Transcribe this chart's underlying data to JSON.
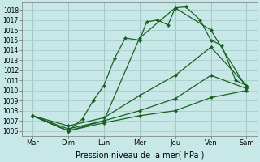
{
  "xlabel": "Pression niveau de la mer( hPa )",
  "background_color": "#c8e8e8",
  "grid_color": "#a8cccc",
  "line_color": "#1a6020",
  "ylim": [
    1005.5,
    1018.7
  ],
  "yticks": [
    1006,
    1007,
    1008,
    1009,
    1010,
    1011,
    1012,
    1013,
    1014,
    1015,
    1016,
    1017,
    1018
  ],
  "x_labels": [
    "Mar",
    "Dim",
    "Lun",
    "Mer",
    "Jeu",
    "Ven",
    "Sam"
  ],
  "lines": [
    {
      "x": [
        0,
        1,
        1.4,
        1.7,
        2.0,
        2.3,
        2.6,
        3.0,
        3.2,
        3.5,
        3.8,
        4.0,
        4.3,
        4.7,
        5.0,
        5.3,
        5.7,
        6.0
      ],
      "y": [
        1007.5,
        1006.0,
        1007.2,
        1009.0,
        1010.5,
        1013.2,
        1015.2,
        1015.0,
        1016.8,
        1017.0,
        1016.5,
        1018.2,
        1018.3,
        1017.0,
        1015.0,
        1014.5,
        1011.0,
        1010.5
      ],
      "linestyle": "-",
      "linewidth": 0.9,
      "markersize": 2.2
    },
    {
      "x": [
        0,
        1,
        2,
        3,
        4,
        5,
        6
      ],
      "y": [
        1007.5,
        1006.2,
        1007.0,
        1015.2,
        1018.2,
        1016.0,
        1010.3
      ],
      "linestyle": "-",
      "linewidth": 0.9,
      "markersize": 2.2
    },
    {
      "x": [
        0,
        1,
        2,
        3,
        4,
        5,
        6
      ],
      "y": [
        1007.5,
        1006.5,
        1007.3,
        1009.5,
        1011.5,
        1014.3,
        1010.5
      ],
      "linestyle": "-",
      "linewidth": 0.9,
      "markersize": 2.2
    },
    {
      "x": [
        0,
        1,
        2,
        3,
        4,
        5,
        6
      ],
      "y": [
        1007.5,
        1006.0,
        1007.0,
        1008.0,
        1009.2,
        1011.5,
        1010.2
      ],
      "linestyle": "-",
      "linewidth": 0.9,
      "markersize": 2.2
    },
    {
      "x": [
        0,
        1,
        2,
        3,
        4,
        5,
        6
      ],
      "y": [
        1007.5,
        1006.0,
        1006.8,
        1007.5,
        1008.0,
        1009.3,
        1010.0
      ],
      "linestyle": "-",
      "linewidth": 0.9,
      "markersize": 2.2
    }
  ]
}
